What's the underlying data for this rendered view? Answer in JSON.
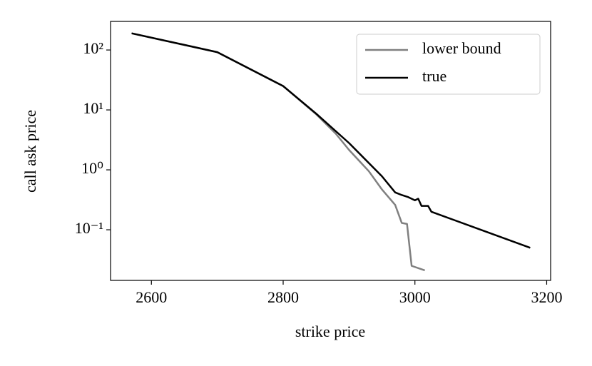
{
  "chart_data": {
    "type": "line",
    "log_y": true,
    "xlabel": "strike price",
    "ylabel": "call ask price",
    "xlim": [
      2538,
      3206
    ],
    "ylim": [
      0.0143,
      300
    ],
    "xticks": [
      2600,
      2800,
      3000,
      3200
    ],
    "yticks": [
      {
        "value": 0.1,
        "label": "10⁻¹"
      },
      {
        "value": 1,
        "label": "10⁰"
      },
      {
        "value": 10,
        "label": "10¹"
      },
      {
        "value": 100,
        "label": "10²"
      }
    ],
    "legend": "upper right",
    "series": [
      {
        "name": "lower bound",
        "color": "#808080",
        "x": [
          2570,
          2700,
          2800,
          2850,
          2880,
          2900,
          2930,
          2950,
          2970,
          2980,
          2988,
          2995,
          3015
        ],
        "values": [
          190,
          92,
          25,
          8.5,
          4.0,
          2.15,
          0.95,
          0.47,
          0.26,
          0.13,
          0.125,
          0.025,
          0.021
        ]
      },
      {
        "name": "true",
        "color": "#000000",
        "x": [
          2570,
          2700,
          2800,
          2850,
          2900,
          2950,
          2970,
          2980,
          2990,
          3000,
          3005,
          3010,
          3020,
          3025,
          3100,
          3175
        ],
        "values": [
          190,
          92,
          25,
          8.7,
          2.8,
          0.78,
          0.42,
          0.38,
          0.35,
          0.31,
          0.33,
          0.25,
          0.25,
          0.2,
          0.1,
          0.05
        ]
      }
    ]
  }
}
